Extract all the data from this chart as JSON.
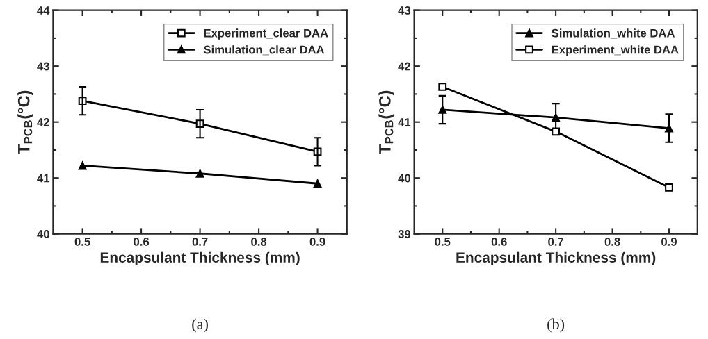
{
  "chart_data": [
    {
      "type": "line",
      "xlabel": "Encapsulant Thickness (mm)",
      "ylabel": "T$_{PCB}$(°C)",
      "x": [
        0.5,
        0.7,
        0.9
      ],
      "series": [
        {
          "name": "Experiment_clear DAA",
          "color": "#000000",
          "marker": "square",
          "values": [
            42.38,
            41.97,
            41.47
          ],
          "errors": [
            0.25,
            0.25,
            0.25
          ]
        },
        {
          "name": "Simulation_clear DAA",
          "color": "#000000",
          "marker": "triangle",
          "values": [
            41.22,
            41.08,
            40.9
          ]
        }
      ],
      "xlim": [
        0.45,
        0.95
      ],
      "xticks": [
        0.5,
        0.6,
        0.7,
        0.8,
        0.9
      ],
      "ylim": [
        40,
        44
      ],
      "yticks": [
        40,
        41,
        42,
        43,
        44
      ],
      "grid": false,
      "legend": "top right",
      "line_style": "solid",
      "annotations": [
        "(a)"
      ]
    },
    {
      "type": "line",
      "xlabel": "Encapsulant Thickness (mm)",
      "ylabel": "T$_{PCB}$(°C)",
      "x": [
        0.5,
        0.7,
        0.9
      ],
      "series": [
        {
          "name": "Simulation_white DAA",
          "color": "#000000",
          "marker": "triangle",
          "values": [
            41.22,
            41.08,
            40.89
          ],
          "errors": [
            0.25,
            0.25,
            0.25
          ]
        },
        {
          "name": "Experiment_white DAA",
          "color": "#000000",
          "marker": "square",
          "values": [
            41.63,
            40.83,
            39.83
          ]
        }
      ],
      "xlim": [
        0.45,
        0.95
      ],
      "xticks": [
        0.5,
        0.6,
        0.7,
        0.8,
        0.9
      ],
      "ylim": [
        39,
        43
      ],
      "yticks": [
        39,
        40,
        41,
        42,
        43
      ],
      "grid": false,
      "legend": "top right",
      "line_style": "solid",
      "annotations": [
        "(b)"
      ]
    }
  ]
}
